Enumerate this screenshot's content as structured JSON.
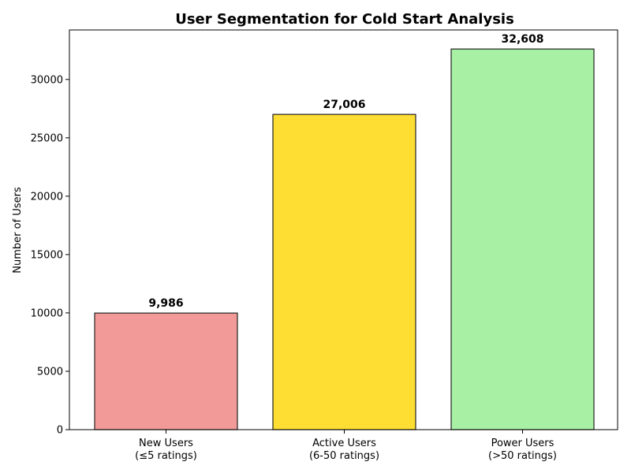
{
  "chart_data": {
    "type": "bar",
    "title": "User Segmentation for Cold Start Analysis",
    "xlabel": "",
    "ylabel": "Number of Users",
    "categories": [
      [
        "New Users",
        "(≤5 ratings)"
      ],
      [
        "Active Users",
        "(6-50 ratings)"
      ],
      [
        "Power Users",
        "(>50 ratings)"
      ]
    ],
    "values": [
      9986,
      27006,
      32608
    ],
    "value_labels": [
      "9,986",
      "27,006",
      "32,608"
    ],
    "colors": [
      "#f29a98",
      "#ffde33",
      "#a8f0a4"
    ],
    "edge_color": "#222222",
    "ylim": [
      0,
      34240
    ],
    "yticks": [
      0,
      5000,
      10000,
      15000,
      20000,
      25000,
      30000
    ],
    "grid": false,
    "legend": "none"
  }
}
